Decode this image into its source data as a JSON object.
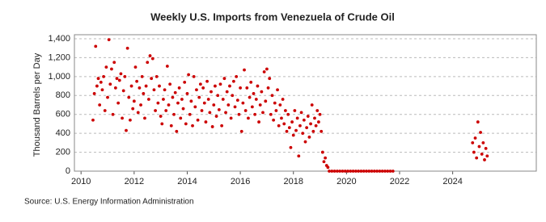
{
  "chart_data": {
    "type": "scatter",
    "title": "Weekly U.S. Imports from Venezuela of Crude Oil",
    "y_label": "Thousand Barrels per Day",
    "source": "Source: U.S. Energy Information Administration",
    "color": "#cc0000",
    "grid": true,
    "xlim": [
      2009.75,
      2027.15
    ],
    "ylim": [
      0,
      1400
    ],
    "xticks": [
      2010,
      2012,
      2014,
      2016,
      2018,
      2020,
      2022,
      2024
    ],
    "yticks": [
      0,
      200,
      400,
      600,
      800,
      {
        "value": 1000,
        "label": "1,000"
      },
      {
        "value": 1200,
        "label": "1,200"
      },
      {
        "value": 1400,
        "label": "1,400"
      }
    ],
    "x": [
      2010.45,
      2010.5,
      2010.55,
      2010.6,
      2010.65,
      2010.7,
      2010.75,
      2010.8,
      2010.85,
      2010.9,
      2010.95,
      2011.0,
      2011.05,
      2011.1,
      2011.15,
      2011.2,
      2011.25,
      2011.3,
      2011.35,
      2011.4,
      2011.45,
      2011.5,
      2011.55,
      2011.6,
      2011.65,
      2011.7,
      2011.75,
      2011.8,
      2011.85,
      2011.9,
      2011.95,
      2012.0,
      2012.05,
      2012.1,
      2012.15,
      2012.2,
      2012.25,
      2012.3,
      2012.35,
      2012.4,
      2012.45,
      2012.5,
      2012.55,
      2012.6,
      2012.65,
      2012.7,
      2012.75,
      2012.8,
      2012.85,
      2012.9,
      2012.95,
      2013.0,
      2013.05,
      2013.1,
      2013.15,
      2013.2,
      2013.25,
      2013.3,
      2013.35,
      2013.4,
      2013.45,
      2013.5,
      2013.55,
      2013.6,
      2013.65,
      2013.7,
      2013.75,
      2013.8,
      2013.85,
      2013.9,
      2013.95,
      2014.0,
      2014.05,
      2014.1,
      2014.15,
      2014.2,
      2014.25,
      2014.3,
      2014.35,
      2014.4,
      2014.45,
      2014.5,
      2014.55,
      2014.6,
      2014.65,
      2014.7,
      2014.75,
      2014.8,
      2014.85,
      2014.9,
      2014.95,
      2015.0,
      2015.05,
      2015.1,
      2015.15,
      2015.2,
      2015.25,
      2015.3,
      2015.35,
      2015.4,
      2015.45,
      2015.5,
      2015.55,
      2015.6,
      2015.65,
      2015.7,
      2015.75,
      2015.8,
      2015.85,
      2015.9,
      2015.95,
      2016.0,
      2016.05,
      2016.1,
      2016.15,
      2016.2,
      2016.25,
      2016.3,
      2016.35,
      2016.4,
      2016.45,
      2016.5,
      2016.55,
      2016.6,
      2016.65,
      2016.7,
      2016.75,
      2016.8,
      2016.85,
      2016.9,
      2016.95,
      2017.0,
      2017.05,
      2017.1,
      2017.15,
      2017.2,
      2017.25,
      2017.3,
      2017.35,
      2017.4,
      2017.45,
      2017.5,
      2017.55,
      2017.6,
      2017.65,
      2017.7,
      2017.75,
      2017.8,
      2017.85,
      2017.9,
      2017.95,
      2018.0,
      2018.05,
      2018.1,
      2018.15,
      2018.2,
      2018.25,
      2018.3,
      2018.35,
      2018.4,
      2018.45,
      2018.5,
      2018.55,
      2018.6,
      2018.65,
      2018.7,
      2018.75,
      2018.8,
      2018.85,
      2018.9,
      2018.95,
      2019.0,
      2019.05,
      2019.1,
      2019.15,
      2019.2,
      2019.25,
      2019.3,
      2019.35,
      2019.45,
      2019.55,
      2019.65,
      2019.75,
      2019.85,
      2019.95,
      2020.05,
      2020.15,
      2020.25,
      2020.35,
      2020.45,
      2020.55,
      2020.65,
      2020.75,
      2020.85,
      2020.95,
      2021.05,
      2021.15,
      2021.25,
      2021.35,
      2021.45,
      2021.55,
      2021.65,
      2021.75,
      2024.75,
      2024.8,
      2024.85,
      2024.9,
      2024.95,
      2025.0,
      2025.05,
      2025.1,
      2025.15,
      2025.2,
      2025.25,
      2025.3
    ],
    "values": [
      540,
      820,
      1320,
      900,
      980,
      700,
      940,
      860,
      1000,
      640,
      1100,
      780,
      1390,
      920,
      1080,
      600,
      1150,
      880,
      980,
      720,
      960,
      1030,
      560,
      850,
      1000,
      430,
      1300,
      780,
      540,
      900,
      660,
      740,
      1100,
      950,
      620,
      880,
      700,
      1000,
      820,
      560,
      900,
      1150,
      760,
      1220,
      980,
      1190,
      860,
      640,
      1000,
      720,
      900,
      580,
      500,
      760,
      860,
      640,
      1110,
      700,
      920,
      480,
      780,
      600,
      830,
      420,
      720,
      880,
      560,
      760,
      660,
      940,
      500,
      820,
      1020,
      600,
      740,
      480,
      1000,
      680,
      860,
      540,
      780,
      920,
      640,
      880,
      720,
      520,
      950,
      760,
      620,
      840,
      470,
      700,
      900,
      580,
      800,
      650,
      920,
      480,
      760,
      980,
      620,
      840,
      700,
      900,
      560,
      800,
      950,
      680,
      1000,
      750,
      600,
      880,
      420,
      720,
      1070,
      640,
      880,
      560,
      780,
      940,
      680,
      820,
      600,
      760,
      900,
      520,
      700,
      840,
      620,
      1050,
      740,
      1080,
      880,
      980,
      600,
      800,
      540,
      720,
      640,
      860,
      480,
      700,
      560,
      760,
      500,
      640,
      420,
      600,
      460,
      250,
      520,
      380,
      640,
      430,
      560,
      160,
      480,
      620,
      400,
      540,
      310,
      460,
      580,
      360,
      500,
      700,
      420,
      560,
      480,
      640,
      520,
      600,
      420,
      200,
      100,
      140,
      60,
      40,
      0,
      0,
      0,
      0,
      0,
      0,
      0,
      0,
      0,
      0,
      0,
      0,
      0,
      0,
      0,
      0,
      0,
      0,
      0,
      0,
      0,
      0,
      0,
      0,
      0,
      300,
      200,
      350,
      140,
      520,
      260,
      410,
      180,
      300,
      120,
      240,
      160
    ]
  }
}
